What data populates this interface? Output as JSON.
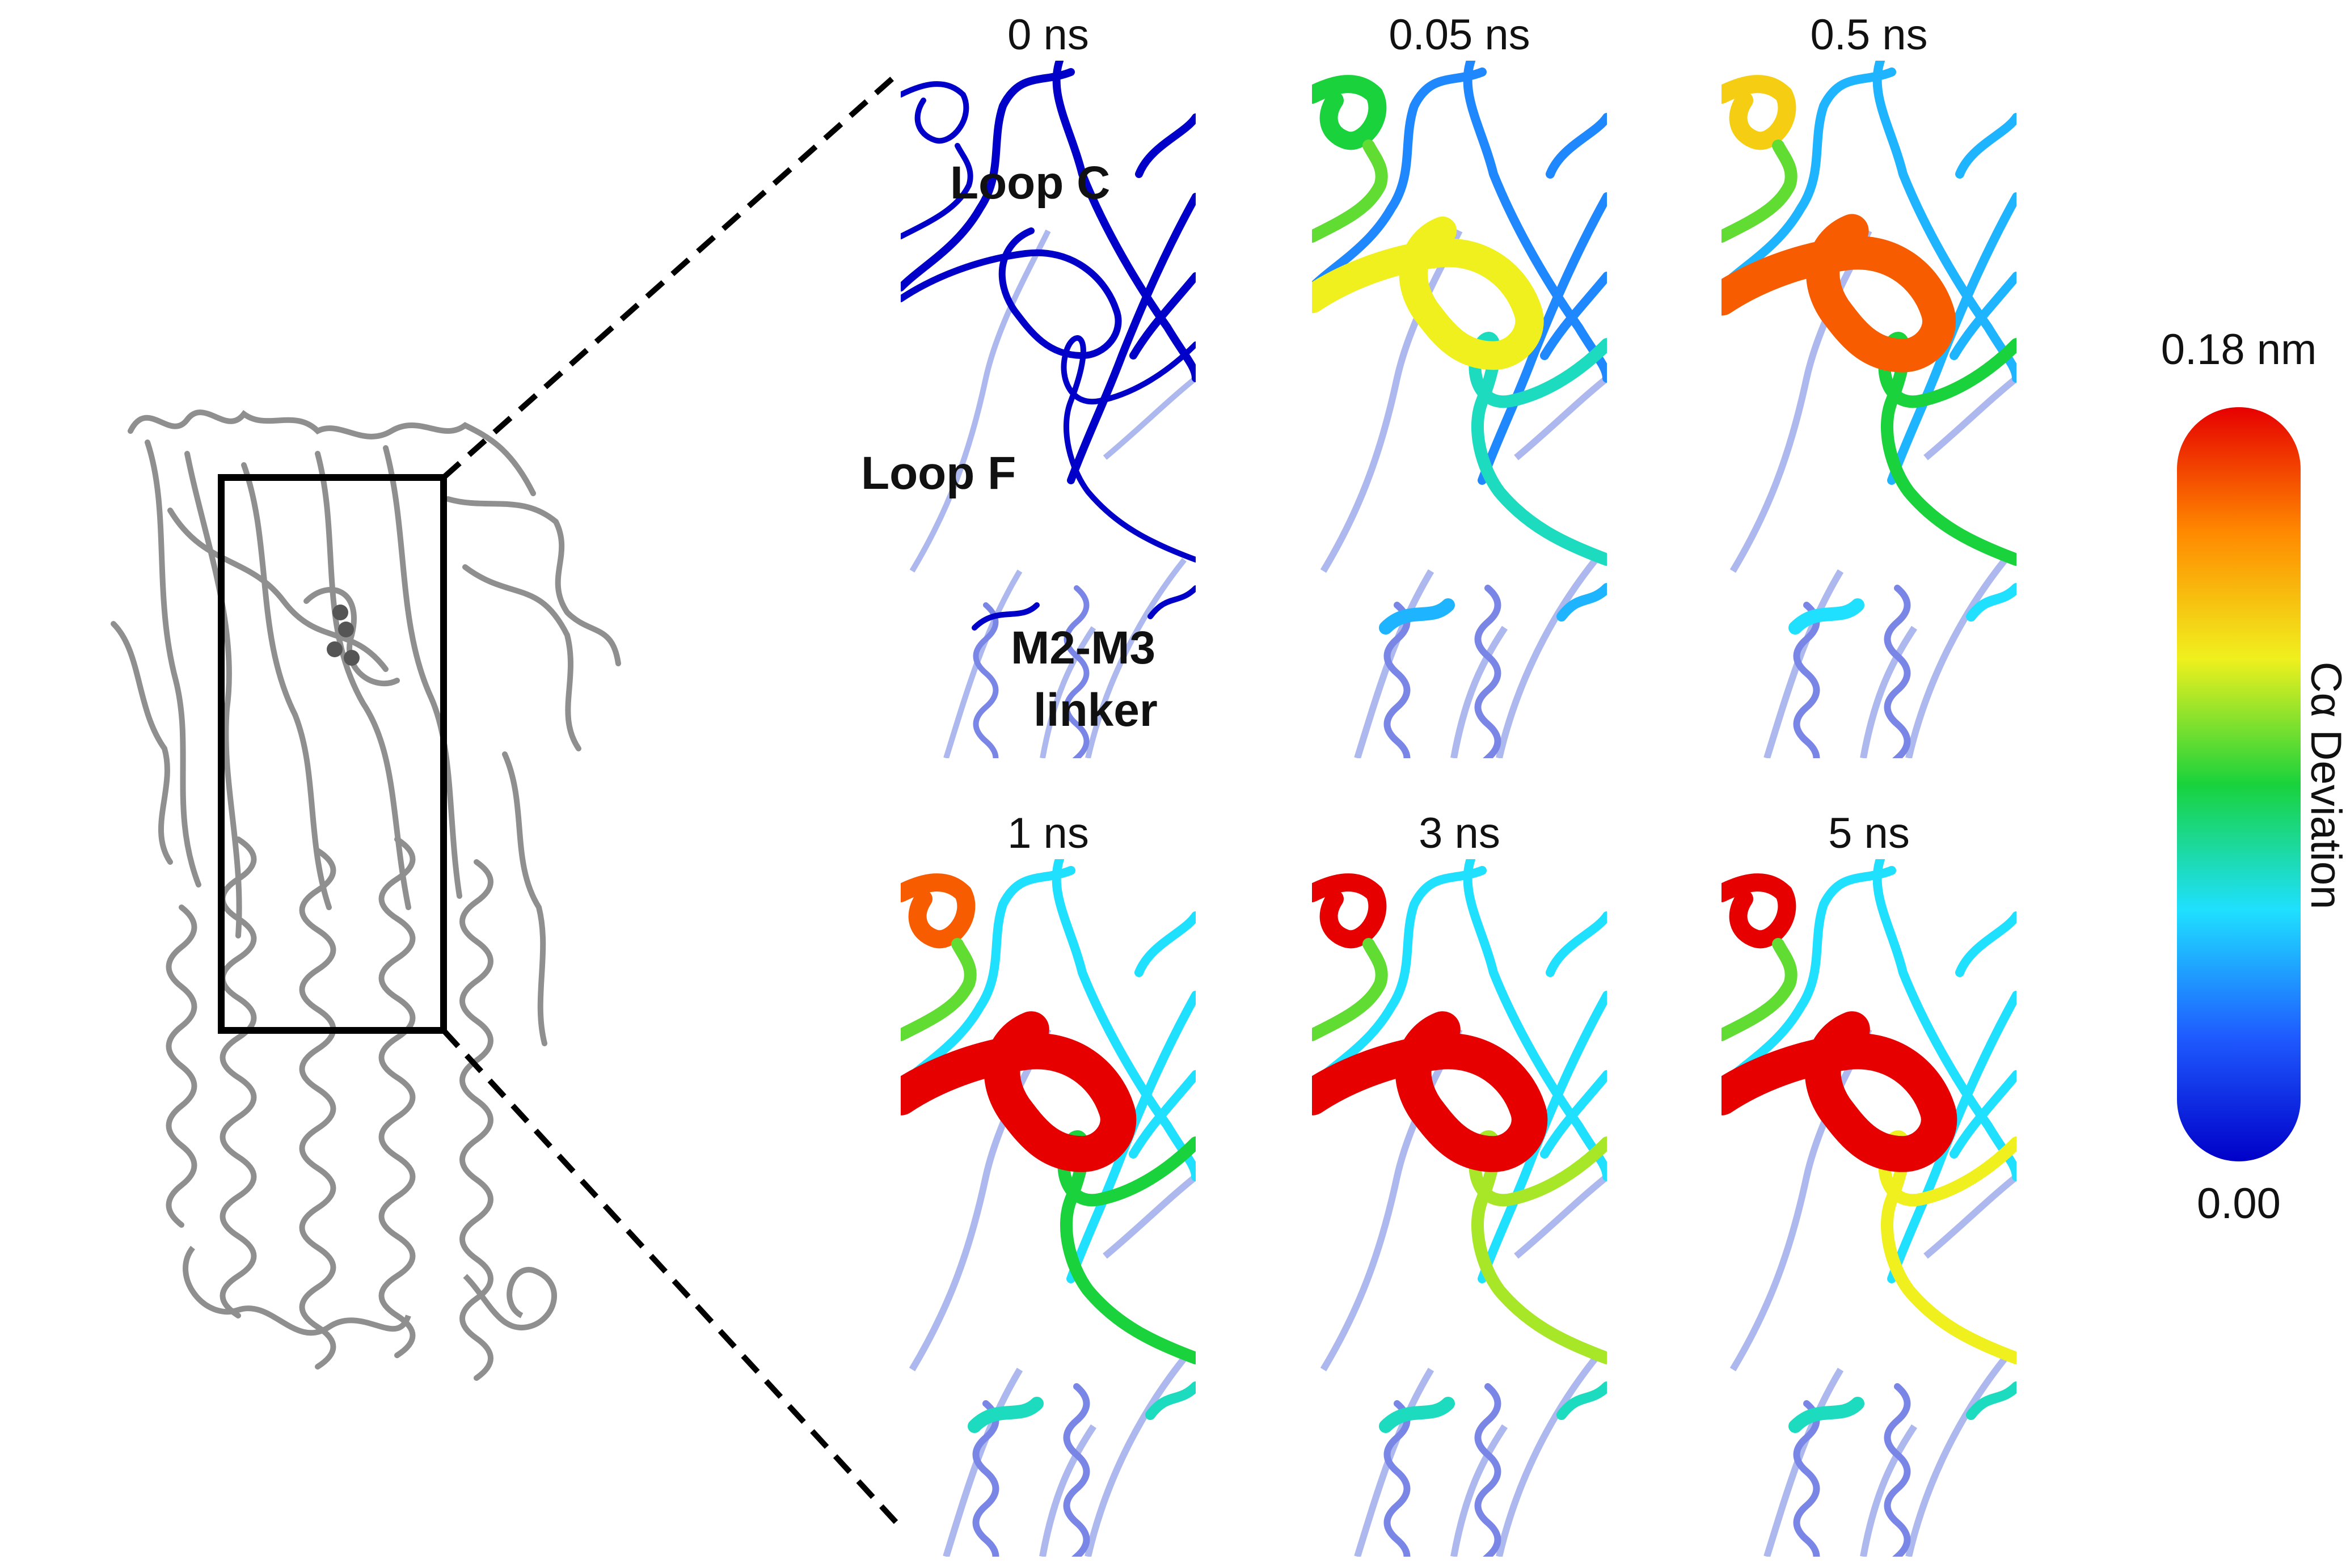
{
  "panels": [
    {
      "time_label": "0 ns",
      "frame": 0
    },
    {
      "time_label": "0.05 ns",
      "frame": 1
    },
    {
      "time_label": "0.5 ns",
      "frame": 2
    },
    {
      "time_label": "1 ns",
      "frame": 3
    },
    {
      "time_label": "3 ns",
      "frame": 4
    },
    {
      "time_label": "5 ns",
      "frame": 5
    }
  ],
  "annotations": {
    "loop_c": "Loop C",
    "loop_f": "Loop F",
    "m2m3_line1": "M2-M3",
    "m2m3_line2": "linker"
  },
  "colorbar": {
    "max_label": "0.18 nm",
    "min_label": "0.00",
    "title": "Cα Deviation",
    "max_value": 0.18,
    "min_value": 0.0,
    "colors": [
      "#0000c8",
      "#1f5cff",
      "#1fe0ff",
      "#19d23c",
      "#f0f01e",
      "#ff8a00",
      "#e60000"
    ]
  },
  "structure_color": "#8f8f8f",
  "selection_box_color": "#000000",
  "regions": {
    "loop_c_deviation": [
      0.0,
      0.12,
      0.16,
      0.18,
      0.18,
      0.18
    ],
    "loop_top_deviation": [
      0.0,
      0.09,
      0.13,
      0.16,
      0.18,
      0.18
    ],
    "loop_f_deviation": [
      0.0,
      0.07,
      0.09,
      0.09,
      0.11,
      0.12
    ],
    "strands_deviation": [
      0.0,
      0.04,
      0.05,
      0.06,
      0.06,
      0.06
    ],
    "linker_deviation": [
      0.0,
      0.05,
      0.06,
      0.07,
      0.07,
      0.07
    ]
  }
}
